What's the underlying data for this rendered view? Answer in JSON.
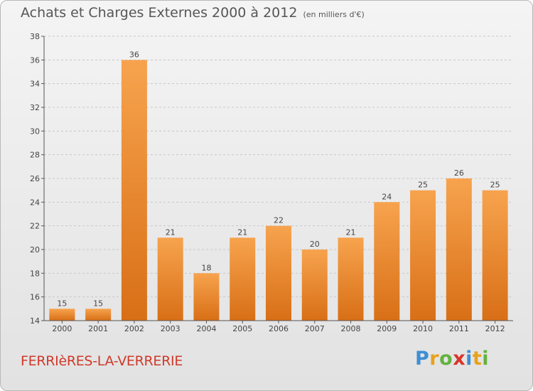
{
  "header": {
    "title": "Achats et Charges Externes 2000 à 2012",
    "unit": "(en milliers d'€)"
  },
  "footer": {
    "commune": "FERRIèRES-LA-VERRERIE",
    "logo_text": "Proxiti"
  },
  "colors": {
    "bar_top": "#f7a34e",
    "bar_bottom": "#d86f16",
    "grid": "#c8c8c8",
    "axis": "#555555",
    "commune_text": "#cf3a2a"
  },
  "chart_data": {
    "type": "bar",
    "title": "Achats et Charges Externes 2000 à 2012",
    "subtitle": "(en milliers d'€)",
    "xlabel": "",
    "ylabel": "",
    "categories": [
      "2000",
      "2001",
      "2002",
      "2003",
      "2004",
      "2005",
      "2006",
      "2007",
      "2008",
      "2009",
      "2010",
      "2011",
      "2012"
    ],
    "values": [
      15,
      15,
      36,
      21,
      18,
      21,
      22,
      20,
      21,
      24,
      25,
      26,
      25
    ],
    "value_labels": [
      "15",
      "15",
      "36",
      "21",
      "18",
      "21",
      "22",
      "20",
      "21",
      "24",
      "25",
      "26",
      "25"
    ],
    "ylim": [
      14,
      38
    ],
    "yticks": [
      14,
      16,
      18,
      20,
      22,
      24,
      26,
      28,
      30,
      32,
      34,
      36,
      38
    ],
    "grid": "horizontal dashed",
    "legend": "none"
  }
}
